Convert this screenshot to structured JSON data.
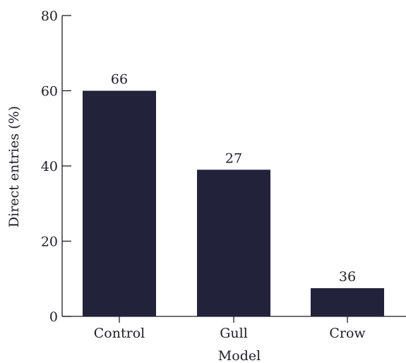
{
  "chart_data": {
    "type": "bar",
    "categories": [
      "Control",
      "Gull",
      "Crow"
    ],
    "values": [
      60,
      39,
      7.5
    ],
    "bar_labels": [
      "66",
      "27",
      "36"
    ],
    "xlabel": "Model",
    "ylabel": "Direct entries (%)",
    "ylim": [
      0,
      80
    ],
    "yticks": [
      0,
      20,
      40,
      60,
      80
    ],
    "bar_color": "#22223a",
    "grid": false
  }
}
